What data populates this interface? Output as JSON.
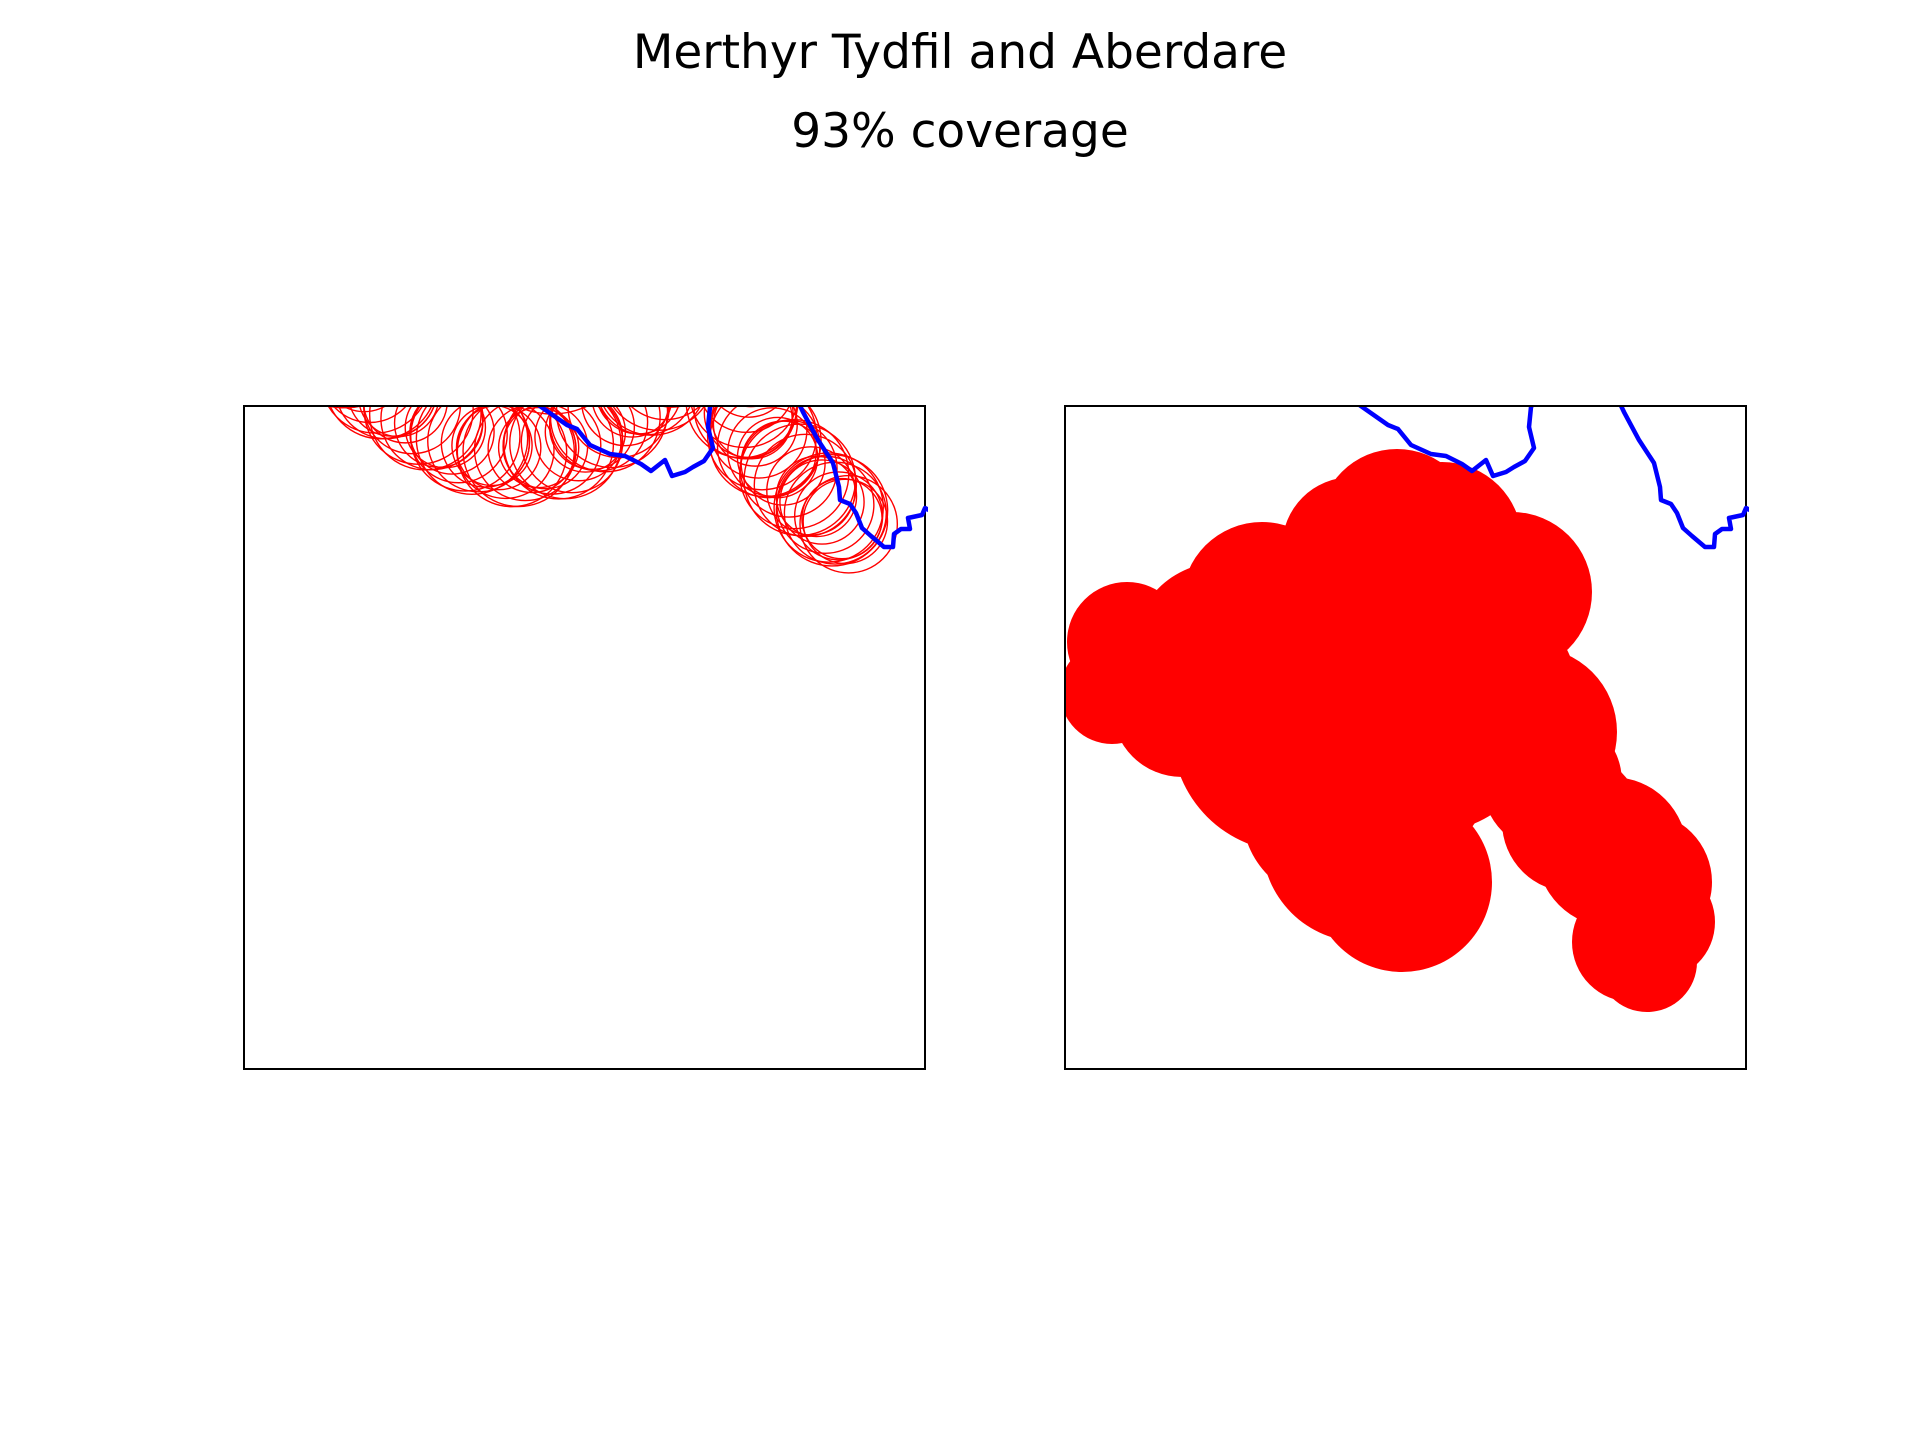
{
  "figure": {
    "title": "Merthyr Tydfil and Aberdare",
    "subtitle": "93% coverage"
  },
  "colors": {
    "boundary": "#0000ff",
    "coverage": "#ff0000",
    "frame": "#000000"
  },
  "panels": [
    {
      "id": "left",
      "style": "outline",
      "description_key": "circle-outlines"
    },
    {
      "id": "right",
      "style": "filled",
      "description_key": "filled-union"
    }
  ]
}
